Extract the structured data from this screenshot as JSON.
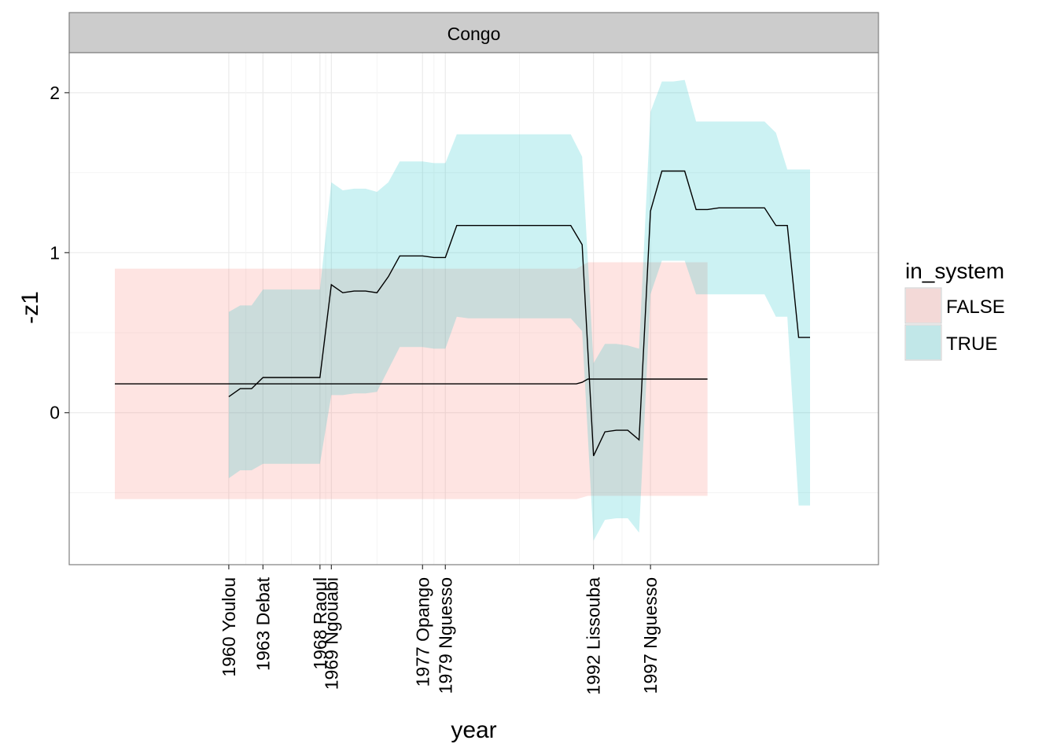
{
  "chart_data": {
    "type": "area",
    "panel": "Congo",
    "xlabel": "year",
    "ylabel": "-z1",
    "xlim": [
      1946,
      2017
    ],
    "ylim": [
      -0.95,
      2.25
    ],
    "y_ticks": [
      0,
      1,
      2
    ],
    "grid": true,
    "x_tick_labels": [
      {
        "x": 1960,
        "label": "1960 Youlou"
      },
      {
        "x": 1963,
        "label": "1963 Debat"
      },
      {
        "x": 1968,
        "label": "1968 Raoul"
      },
      {
        "x": 1969,
        "label": "1969 Ngouabi"
      },
      {
        "x": 1977,
        "label": "1977 Opango"
      },
      {
        "x": 1979,
        "label": "1979 Nguesso"
      },
      {
        "x": 1992,
        "label": "1992 Lissouba"
      },
      {
        "x": 1997,
        "label": "1997 Nguesso"
      }
    ],
    "legend": {
      "title": "in_system",
      "position": "right",
      "entries": [
        {
          "label": "FALSE",
          "color": "#F8766D"
        },
        {
          "label": "TRUE",
          "color": "#00BFC4"
        }
      ]
    },
    "series": [
      {
        "name": "FALSE",
        "color": "#F8766D",
        "x": [
          1950,
          1990.5,
          1991,
          1991.5,
          2002
        ],
        "y": [
          0.18,
          0.18,
          0.19,
          0.21,
          0.21
        ],
        "lower": [
          -0.54,
          -0.54,
          -0.53,
          -0.52,
          -0.52
        ],
        "upper": [
          0.9,
          0.9,
          0.92,
          0.94,
          0.94
        ]
      },
      {
        "name": "TRUE",
        "color": "#00BFC4",
        "x": [
          1960,
          1961,
          1962,
          1963,
          1964,
          1965,
          1966,
          1967,
          1968,
          1969,
          1970,
          1971,
          1972,
          1973,
          1974,
          1975,
          1976,
          1977,
          1978,
          1979,
          1980,
          1981,
          1982,
          1983,
          1984,
          1985,
          1986,
          1987,
          1988,
          1989,
          1990,
          1991,
          1992,
          1993,
          1994,
          1995,
          1996,
          1997,
          1998,
          1999,
          2000,
          2001,
          2002,
          2003,
          2004,
          2005,
          2006,
          2007,
          2008,
          2009,
          2010,
          2011
        ],
        "y": [
          0.1,
          0.15,
          0.15,
          0.22,
          0.22,
          0.22,
          0.22,
          0.22,
          0.22,
          0.8,
          0.75,
          0.76,
          0.76,
          0.75,
          0.85,
          0.98,
          0.98,
          0.98,
          0.97,
          0.97,
          1.17,
          1.17,
          1.17,
          1.17,
          1.17,
          1.17,
          1.17,
          1.17,
          1.17,
          1.17,
          1.17,
          1.05,
          -0.27,
          -0.12,
          -0.11,
          -0.11,
          -0.17,
          1.26,
          1.51,
          1.51,
          1.51,
          1.27,
          1.27,
          1.28,
          1.28,
          1.28,
          1.28,
          1.28,
          1.17,
          1.17,
          0.47,
          0.47
        ],
        "lower": [
          -0.41,
          -0.36,
          -0.36,
          -0.32,
          -0.32,
          -0.32,
          -0.32,
          -0.32,
          -0.32,
          0.11,
          0.11,
          0.12,
          0.12,
          0.13,
          0.27,
          0.41,
          0.41,
          0.41,
          0.4,
          0.4,
          0.6,
          0.59,
          0.59,
          0.59,
          0.59,
          0.59,
          0.59,
          0.59,
          0.59,
          0.59,
          0.59,
          0.51,
          -0.8,
          -0.67,
          -0.66,
          -0.66,
          -0.75,
          0.74,
          0.95,
          0.95,
          0.95,
          0.74,
          0.74,
          0.74,
          0.74,
          0.74,
          0.74,
          0.74,
          0.6,
          0.6,
          -0.58,
          -0.58
        ],
        "upper": [
          0.63,
          0.67,
          0.67,
          0.77,
          0.77,
          0.77,
          0.77,
          0.77,
          0.77,
          1.44,
          1.39,
          1.4,
          1.4,
          1.38,
          1.44,
          1.57,
          1.57,
          1.57,
          1.56,
          1.56,
          1.74,
          1.74,
          1.74,
          1.74,
          1.74,
          1.74,
          1.74,
          1.74,
          1.74,
          1.74,
          1.74,
          1.6,
          0.31,
          0.43,
          0.43,
          0.42,
          0.4,
          1.88,
          2.07,
          2.07,
          2.08,
          1.82,
          1.82,
          1.82,
          1.82,
          1.82,
          1.82,
          1.82,
          1.75,
          1.52,
          1.52,
          1.52
        ]
      }
    ]
  }
}
